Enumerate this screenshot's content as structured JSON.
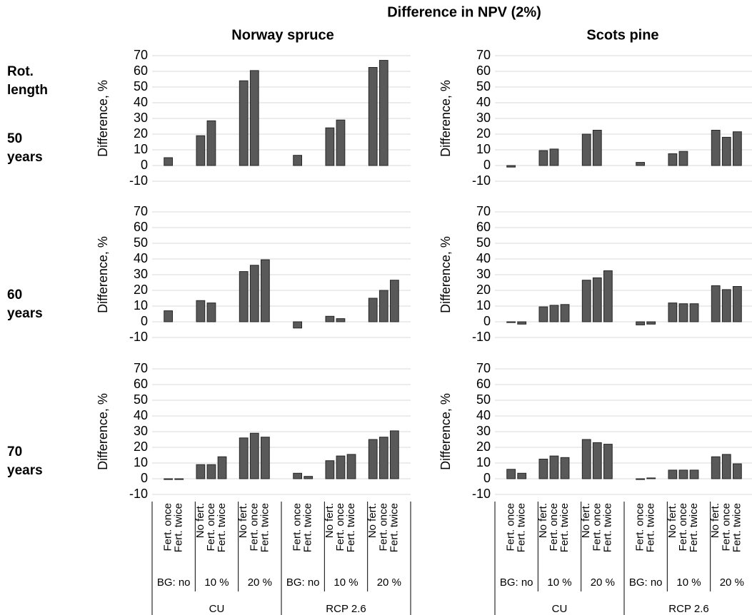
{
  "title": "Difference in NPV (2%)",
  "row_header": "Rot. length",
  "column_titles": [
    "Norway spruce",
    "Scots pine"
  ],
  "row_titles": [
    "50 years",
    "60 years",
    "70 years"
  ],
  "x_axis": {
    "scenarios": [
      {
        "name": "CU",
        "groups": [
          {
            "name": "BG: no",
            "categories": [
              "Fert. once",
              "Fert. twice"
            ]
          },
          {
            "name": "10 %",
            "categories": [
              "No fert.",
              "Fert. once",
              "Fert. twice"
            ]
          },
          {
            "name": "20 %",
            "categories": [
              "No fert.",
              "Fert. once",
              "Fert. twice"
            ]
          }
        ]
      },
      {
        "name": "RCP 2.6",
        "groups": [
          {
            "name": "BG: no",
            "categories": [
              "Fert. once",
              "Fert. twice"
            ]
          },
          {
            "name": "10 %",
            "categories": [
              "No fert.",
              "Fert. once",
              "Fert. twice"
            ]
          },
          {
            "name": "20 %",
            "categories": [
              "No fert.",
              "Fert. once",
              "Fert. twice"
            ]
          }
        ]
      }
    ]
  },
  "chart_data": [
    {
      "type": "bar",
      "ylabel": "Difference, %",
      "ylim": [
        -10,
        70
      ],
      "yticks": [
        -10,
        0,
        10,
        20,
        30,
        40,
        50,
        60,
        70
      ],
      "grid": true,
      "color": "#595959",
      "values": [
        5,
        null,
        19,
        28.5,
        null,
        54,
        60.5,
        null,
        6.5,
        null,
        24,
        29,
        null,
        62.5,
        67,
        null
      ]
    },
    {
      "type": "bar",
      "ylabel": "Difference, %",
      "ylim": [
        -10,
        70
      ],
      "yticks": [
        -10,
        0,
        10,
        20,
        30,
        40,
        50,
        60,
        70
      ],
      "grid": true,
      "color": "#595959",
      "values": [
        -1,
        null,
        9.5,
        10.5,
        null,
        20,
        22.5,
        null,
        2,
        null,
        7.5,
        9,
        null,
        22.5,
        18,
        21.5
      ]
    },
    {
      "type": "bar",
      "ylabel": "Difference, %",
      "ylim": [
        -10,
        70
      ],
      "yticks": [
        -10,
        0,
        10,
        20,
        30,
        40,
        50,
        60,
        70
      ],
      "grid": true,
      "color": "#595959",
      "values": [
        7,
        null,
        13.5,
        12,
        null,
        32,
        36,
        39.5,
        -4,
        null,
        3.5,
        2,
        null,
        15,
        20,
        26.5
      ]
    },
    {
      "type": "bar",
      "ylabel": "Difference, %",
      "ylim": [
        -10,
        70
      ],
      "yticks": [
        -10,
        0,
        10,
        20,
        30,
        40,
        50,
        60,
        70
      ],
      "grid": true,
      "color": "#595959",
      "values": [
        -0.5,
        -1.5,
        9.5,
        10.5,
        11,
        26.5,
        28,
        32.5,
        -2,
        -1.5,
        12,
        11.5,
        11.5,
        23,
        20.5,
        22.5
      ]
    },
    {
      "type": "bar",
      "ylabel": "Difference, %",
      "ylim": [
        -10,
        70
      ],
      "yticks": [
        -10,
        0,
        10,
        20,
        30,
        40,
        50,
        60,
        70
      ],
      "grid": true,
      "color": "#595959",
      "values": [
        -0.5,
        -0.5,
        9,
        9,
        14,
        26,
        29,
        26.5,
        3.5,
        1.5,
        11.5,
        14.5,
        15.5,
        25,
        26.5,
        30.5
      ]
    },
    {
      "type": "bar",
      "ylabel": "Difference, %",
      "ylim": [
        -10,
        70
      ],
      "yticks": [
        -10,
        0,
        10,
        20,
        30,
        40,
        50,
        60,
        70
      ],
      "grid": true,
      "color": "#595959",
      "values": [
        6,
        3.5,
        12.5,
        14.5,
        13.5,
        25,
        23,
        22,
        -0.5,
        0.5,
        5.5,
        5.5,
        5.5,
        14,
        15.5,
        9.5
      ]
    }
  ]
}
